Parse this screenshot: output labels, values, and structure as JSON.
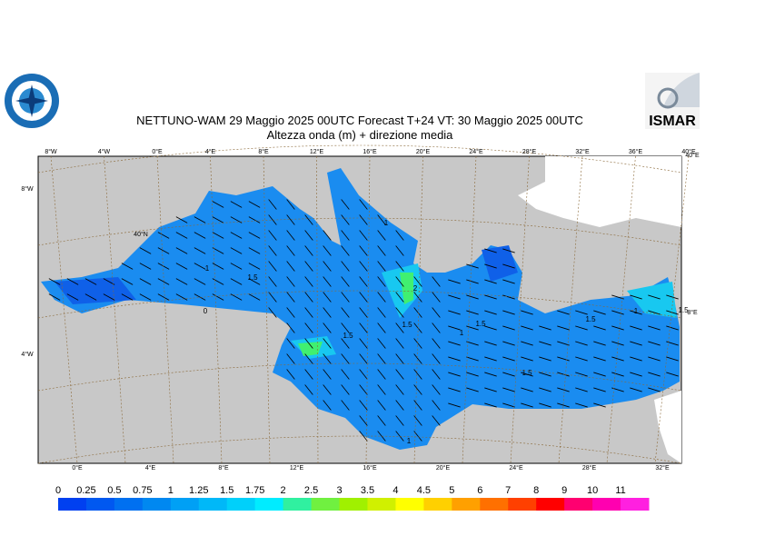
{
  "header": {
    "title": "NETTUNO-WAM  29   Maggio  2025 00UTC Forecast T+24 VT: 30   Maggio  2025 00UTC",
    "subtitle": "Altezza onda (m) + direzione media",
    "logo_right": "ISMAR"
  },
  "graticule": {
    "top": [
      "8°W",
      "4°W",
      "0°E",
      "4°E",
      "8°E",
      "12°E",
      "16°E",
      "20°E",
      "24°E",
      "28°E",
      "32°E",
      "36°E",
      "40°E"
    ],
    "bottom": [
      "0°E",
      "4°E",
      "8°E",
      "12°E",
      "16°E",
      "20°E",
      "24°E",
      "28°E",
      "32°E"
    ],
    "left": [
      "8°W",
      "40°N",
      "4°W"
    ],
    "right": [
      "40°E",
      "8°E"
    ]
  },
  "contour_labels": [
    "1",
    "1",
    "1.5",
    "0",
    "2",
    "1.5",
    "1.5",
    "1",
    "1.5",
    "1.5",
    "1.5",
    "1",
    "1.5",
    "1"
  ],
  "legend": {
    "labels": [
      0,
      0.25,
      0.5,
      0.75,
      1,
      1.25,
      1.5,
      1.75,
      2,
      2.5,
      3,
      3.5,
      4,
      4.5,
      5,
      6,
      7,
      8,
      9,
      10,
      11
    ],
    "colors": [
      "#0040f0",
      "#0058f0",
      "#0070f0",
      "#0088f0",
      "#00a0f5",
      "#00b8f8",
      "#00d0fa",
      "#00ecff",
      "#30f0a0",
      "#70f040",
      "#a0f000",
      "#d0f000",
      "#ffff00",
      "#ffd000",
      "#ffa000",
      "#ff7000",
      "#ff4000",
      "#ff0000",
      "#ff0070",
      "#ff00b0",
      "#ff20e0"
    ]
  }
}
